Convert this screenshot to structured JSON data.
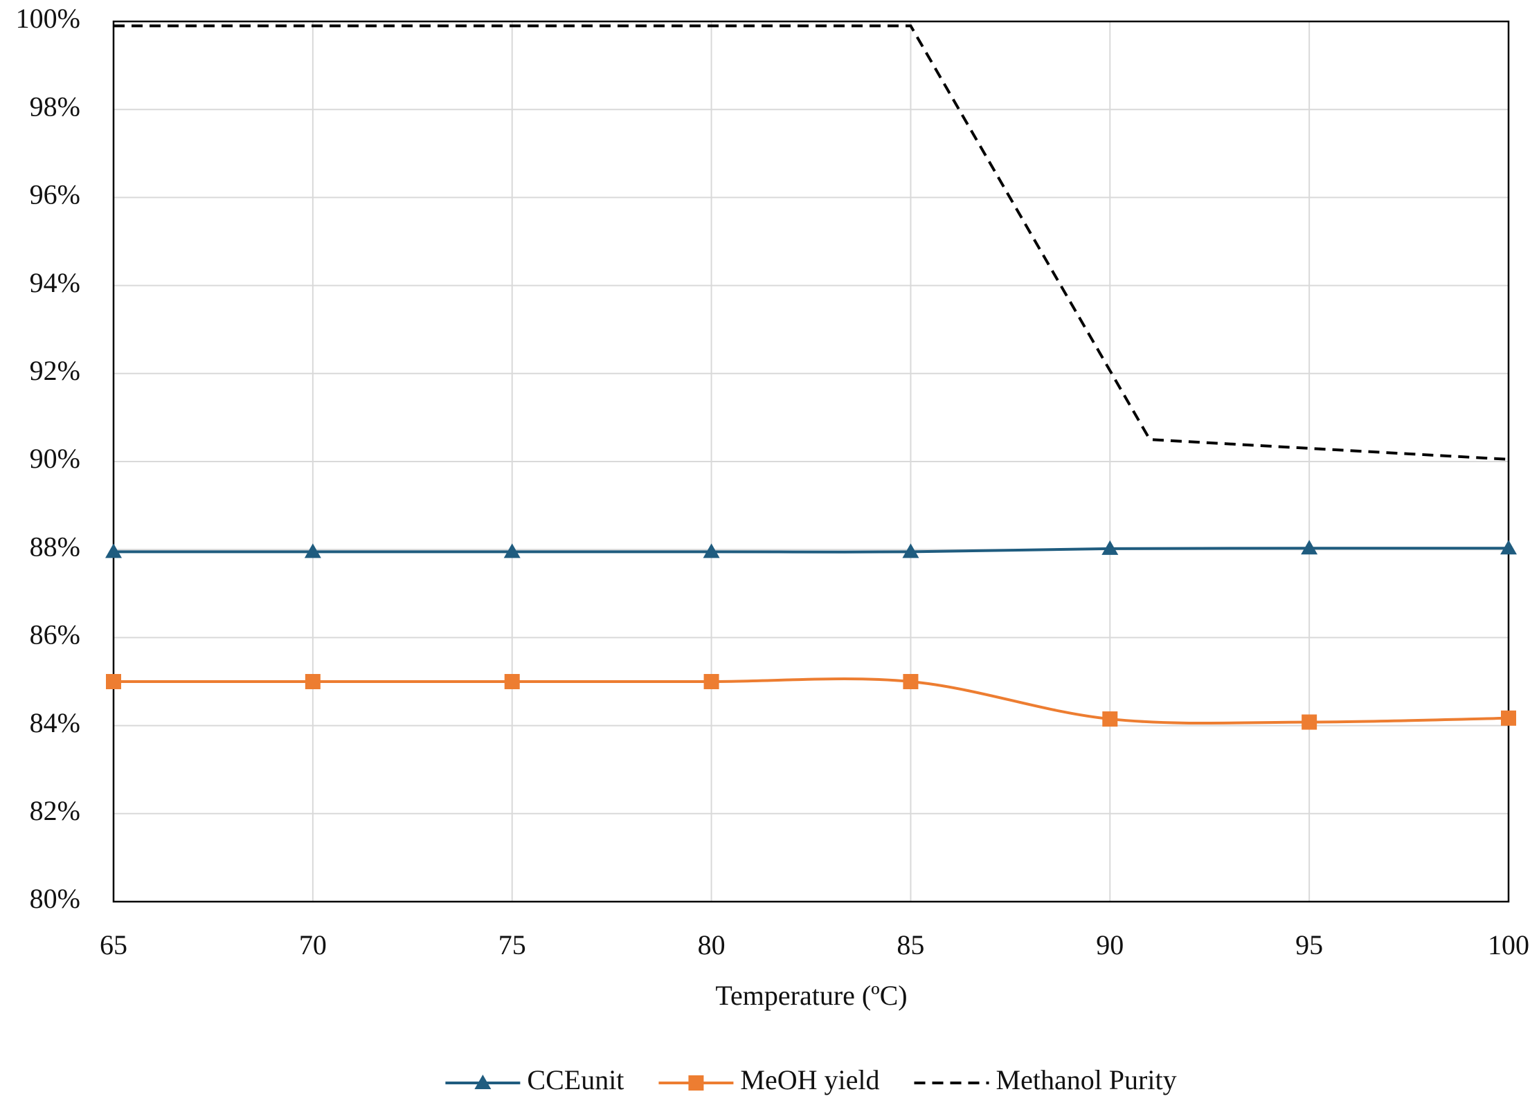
{
  "chart_data": {
    "type": "line",
    "x_label": "Temperature (ºC)",
    "x": [
      65,
      70,
      75,
      80,
      85,
      90,
      95,
      100
    ],
    "xlim": [
      65,
      100
    ],
    "xticks": [
      65,
      70,
      75,
      80,
      85,
      90,
      95,
      100
    ],
    "ylim": [
      80,
      100
    ],
    "yticks": [
      {
        "value": 80,
        "label": "80%"
      },
      {
        "value": 82,
        "label": "82%"
      },
      {
        "value": 84,
        "label": "84%"
      },
      {
        "value": 86,
        "label": "86%"
      },
      {
        "value": 88,
        "label": "88%"
      },
      {
        "value": 90,
        "label": "90%"
      },
      {
        "value": 92,
        "label": "92%"
      },
      {
        "value": 94,
        "label": "94%"
      },
      {
        "value": 96,
        "label": "96%"
      },
      {
        "value": 98,
        "label": "98%"
      },
      {
        "value": 100,
        "label": "100%"
      }
    ],
    "grid": true,
    "legend": "bottom",
    "series": [
      {
        "name": "CCEunit",
        "color": "#1f5c7f",
        "marker": "triangle",
        "smooth": true,
        "values": [
          87.95,
          87.95,
          87.95,
          87.95,
          87.95,
          88.02,
          88.03,
          88.03
        ]
      },
      {
        "name": "MeOH yield",
        "color": "#ed7d31",
        "marker": "square",
        "smooth": true,
        "values": [
          85.0,
          85.0,
          85.0,
          85.0,
          85.0,
          84.15,
          84.08,
          84.17
        ]
      },
      {
        "name": "Methanol Purity",
        "color": "#000000",
        "dashed": true,
        "x": [
          65,
          70,
          75,
          80,
          85,
          91,
          95,
          100
        ],
        "values": [
          99.9,
          99.9,
          99.9,
          99.9,
          99.9,
          90.5,
          90.3,
          90.05
        ]
      }
    ]
  }
}
